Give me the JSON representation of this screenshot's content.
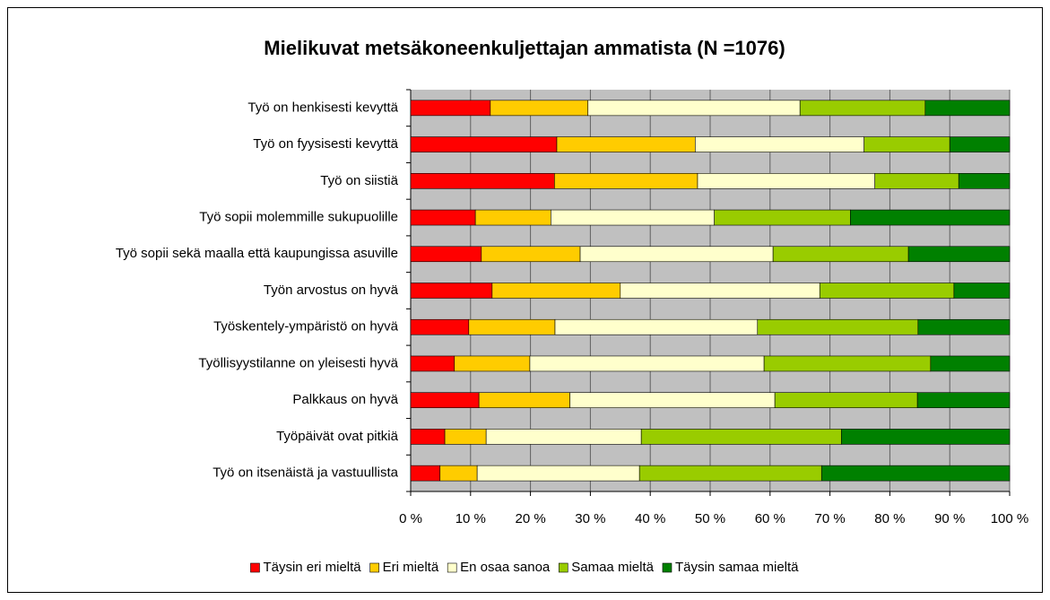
{
  "chart_data": {
    "type": "stacked_barh",
    "title": "Mielikuvat metsäkoneenkuljettajan ammatista (N =1076)",
    "categories": [
      "Työ on henkisesti kevyttä",
      "Työ on fyysisesti kevyttä",
      "Työ on siistiä",
      "Työ sopii molemmille sukupuolille",
      "Työ sopii sekä maalla että kaupungissa asuville",
      "Työn arvostus on hyvä",
      "Työskentely-ympäristö on hyvä",
      "Työllisyystilanne on yleisesti hyvä",
      "Palkkaus on hyvä",
      "Työpäivät ovat pitkiä",
      "Työ on itsenäistä ja vastuullista"
    ],
    "series": [
      {
        "name": "Täysin eri mieltä",
        "color": "#ff0000",
        "values": [
          13.3,
          24.4,
          24.0,
          10.8,
          11.8,
          13.6,
          9.7,
          7.3,
          11.4,
          5.7,
          4.9
        ]
      },
      {
        "name": "Eri mieltä",
        "color": "#ffcc00",
        "values": [
          16.3,
          23.1,
          23.9,
          12.6,
          16.5,
          21.4,
          14.4,
          12.6,
          15.2,
          6.9,
          6.2
        ]
      },
      {
        "name": "En osaa sanoa",
        "color": "#ffffcc",
        "values": [
          35.4,
          28.2,
          29.6,
          27.3,
          32.2,
          33.3,
          33.8,
          39.1,
          34.2,
          25.9,
          27.1
        ]
      },
      {
        "name": "Samaa mieltä",
        "color": "#99cc00",
        "values": [
          20.9,
          14.3,
          14.0,
          22.7,
          22.6,
          22.4,
          26.8,
          27.8,
          23.8,
          33.4,
          30.4
        ]
      },
      {
        "name": "Täysin samaa mieltä",
        "color": "#008000",
        "values": [
          14.1,
          10.0,
          8.5,
          26.6,
          16.9,
          9.3,
          15.3,
          13.2,
          15.4,
          28.1,
          31.4
        ]
      }
    ],
    "xlim": [
      0,
      100
    ],
    "xticks": [
      {
        "value": 0,
        "label": "0 %"
      },
      {
        "value": 10,
        "label": "10 %"
      },
      {
        "value": 20,
        "label": "20 %"
      },
      {
        "value": 30,
        "label": "30 %"
      },
      {
        "value": 40,
        "label": "40 %"
      },
      {
        "value": 50,
        "label": "50 %"
      },
      {
        "value": 60,
        "label": "60 %"
      },
      {
        "value": 70,
        "label": "70 %"
      },
      {
        "value": 80,
        "label": "80 %"
      },
      {
        "value": 90,
        "label": "90 %"
      },
      {
        "value": 100,
        "label": "100 %"
      }
    ],
    "grid": true,
    "legend": "bottom"
  }
}
